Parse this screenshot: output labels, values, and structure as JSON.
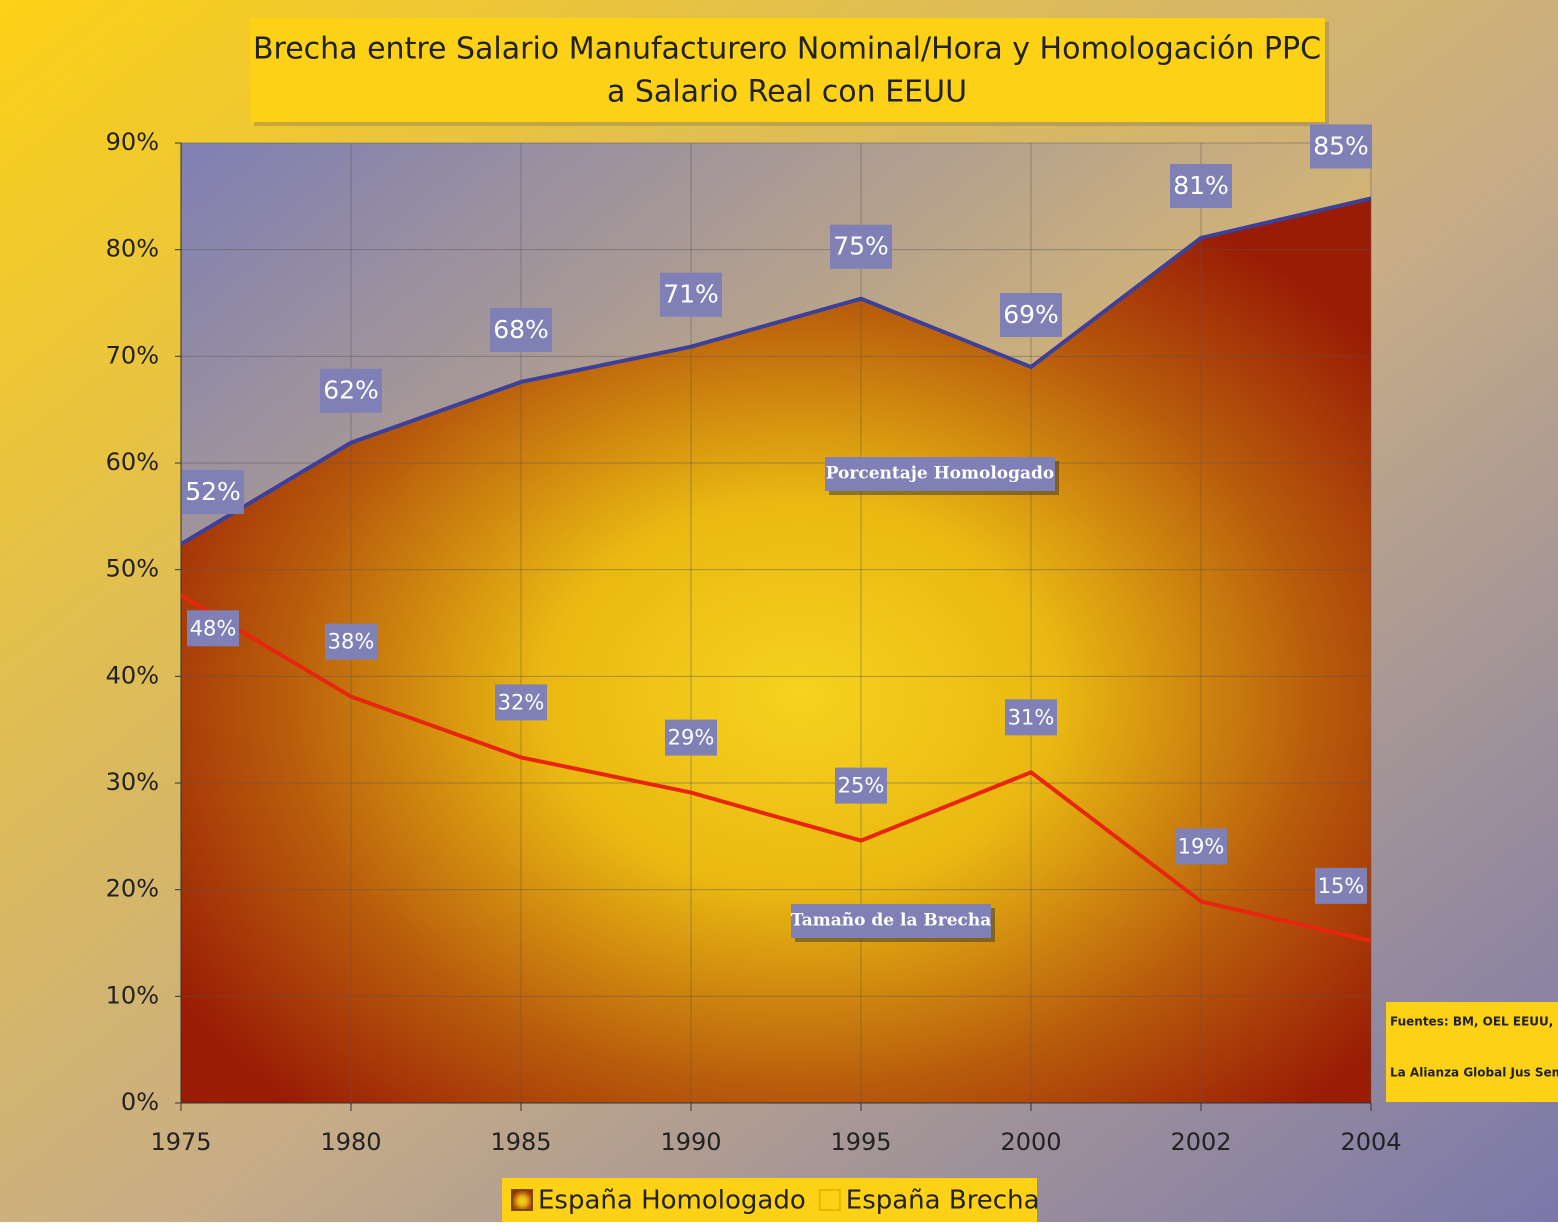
{
  "chart_data": {
    "type": "area",
    "title": "Brecha entre Salario Manufacturero Nominal/Hora y Homologación PPC",
    "subtitle": "a Salario Real con EEUU",
    "categories": [
      "1975",
      "1980",
      "1985",
      "1990",
      "1995",
      "2000",
      "2002",
      "2004"
    ],
    "series": [
      {
        "name": "España Homologado",
        "type": "area",
        "color": "#3d3f99",
        "values": [
          52.4,
          61.9,
          67.6,
          70.9,
          75.4,
          69.0,
          81.1,
          84.8
        ],
        "value_labels": [
          "52%",
          "62%",
          "68%",
          "71%",
          "75%",
          "69%",
          "81%",
          "85%"
        ]
      },
      {
        "name": "España Brecha",
        "type": "line",
        "color": "#e8260f",
        "values": [
          47.6,
          38.1,
          32.4,
          29.1,
          24.6,
          31.0,
          18.9,
          15.2
        ],
        "value_labels": [
          "48%",
          "38%",
          "32%",
          "29%",
          "25%",
          "31%",
          "19%",
          "15%"
        ]
      }
    ],
    "ylim": [
      0,
      90
    ],
    "yticks": [
      {
        "value": 0,
        "label": "0%"
      },
      {
        "value": 10,
        "label": "10%"
      },
      {
        "value": 20,
        "label": "20%"
      },
      {
        "value": 30,
        "label": "30%"
      },
      {
        "value": 40,
        "label": "40%"
      },
      {
        "value": 50,
        "label": "50%"
      },
      {
        "value": 60,
        "label": "60%"
      },
      {
        "value": 70,
        "label": "70%"
      },
      {
        "value": 80,
        "label": "80%"
      },
      {
        "value": 90,
        "label": "90%"
      }
    ],
    "grid": true,
    "legend": "bottom",
    "annotations": [
      "Porcentaje Homologado",
      "Tamaño de la Brecha"
    ],
    "source": [
      "Fuentes: BM, OEL EEUU, OCDE.",
      "La Alianza Global Jus Semper ©"
    ]
  }
}
